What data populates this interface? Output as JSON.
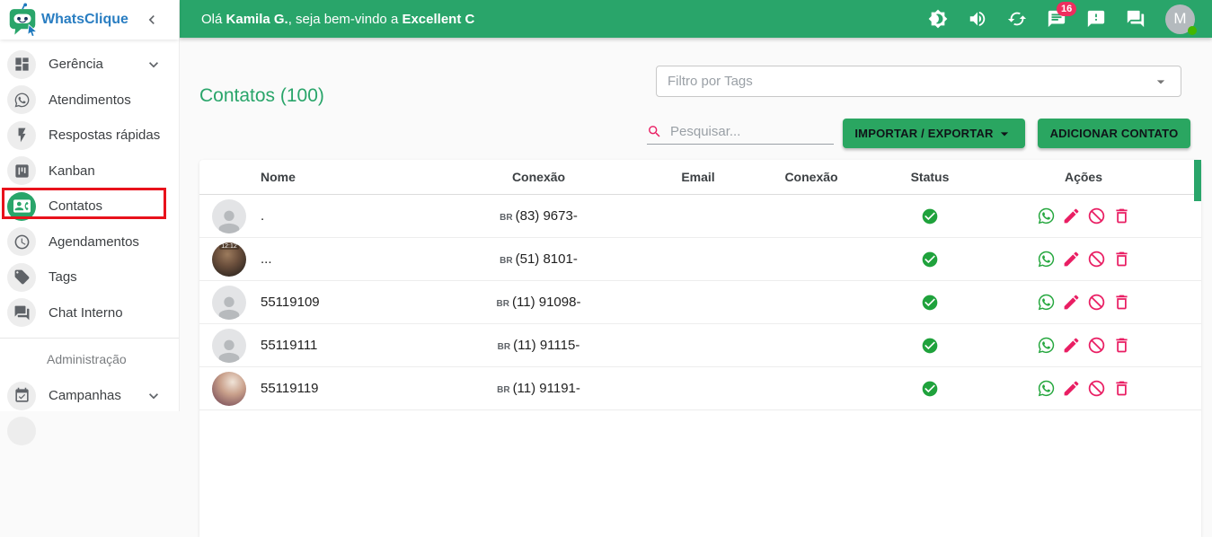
{
  "brand": {
    "name": "WhatsClique"
  },
  "topbar": {
    "greeting_prefix": "Olá ",
    "user_name": "Kamila G.",
    "greeting_middle": ", seja bem-vindo a ",
    "company_name": "Excellent C",
    "notification_count": "16",
    "avatar_initial": "M"
  },
  "sidebar": {
    "items": [
      {
        "label": "Gerência",
        "icon": "dashboard-icon",
        "expandable": true,
        "active": false
      },
      {
        "label": "Atendimentos",
        "icon": "whatsapp-icon",
        "expandable": false,
        "active": false
      },
      {
        "label": "Respostas rápidas",
        "icon": "flash-icon",
        "expandable": false,
        "active": false
      },
      {
        "label": "Kanban",
        "icon": "kanban-icon",
        "expandable": false,
        "active": false
      },
      {
        "label": "Contatos",
        "icon": "contacts-icon",
        "expandable": false,
        "active": true
      },
      {
        "label": "Agendamentos",
        "icon": "clock-icon",
        "expandable": false,
        "active": false
      },
      {
        "label": "Tags",
        "icon": "tag-icon",
        "expandable": false,
        "active": false
      },
      {
        "label": "Chat Interno",
        "icon": "chat-icon",
        "expandable": false,
        "active": false
      }
    ],
    "section_label": "Administração",
    "admin_items": [
      {
        "label": "Campanhas",
        "icon": "calendar-check-icon",
        "expandable": true,
        "active": false
      }
    ]
  },
  "main": {
    "title": "Contatos (100)",
    "filter": {
      "placeholder": "Filtro por Tags"
    },
    "search": {
      "placeholder": "Pesquisar..."
    },
    "buttons": {
      "import_export": "IMPORTAR / EXPORTAR",
      "add_contact": "ADICIONAR CONTATO"
    },
    "table": {
      "columns": [
        "Nome",
        "Conexão",
        "Email",
        "Conexão",
        "Status",
        "Ações"
      ],
      "rows": [
        {
          "name": ".",
          "connection_cc": "BR",
          "connection_number": "(83) 9673-",
          "email": "",
          "connection2": "",
          "status": "connected",
          "avatar": "placeholder",
          "avatar_label": ""
        },
        {
          "name": "...",
          "connection_cc": "BR",
          "connection_number": "(51) 8101-",
          "email": "",
          "connection2": "",
          "status": "connected",
          "avatar": "photo-dark",
          "avatar_label": "12:12"
        },
        {
          "name": "55119109",
          "connection_cc": "BR",
          "connection_number": "(11) 91098-",
          "email": "",
          "connection2": "",
          "status": "connected",
          "avatar": "placeholder",
          "avatar_label": ""
        },
        {
          "name": "55119111",
          "connection_cc": "BR",
          "connection_number": "(11) 91115-",
          "email": "",
          "connection2": "",
          "status": "connected",
          "avatar": "placeholder",
          "avatar_label": ""
        },
        {
          "name": "55119119",
          "connection_cc": "BR",
          "connection_number": "(11) 91191-",
          "email": "",
          "connection2": "",
          "status": "connected",
          "avatar": "photo-light",
          "avatar_label": ""
        }
      ]
    }
  },
  "colors": {
    "primary_green": "#29a56a",
    "button_green": "#2aa661",
    "accent_pink": "#e91e63",
    "badge_red": "#ef2d5e",
    "highlight_red": "#e8121c",
    "status_green": "#1fa23c",
    "whatsapp_green": "#25a73e",
    "brand_blue": "#2a7ec2"
  }
}
